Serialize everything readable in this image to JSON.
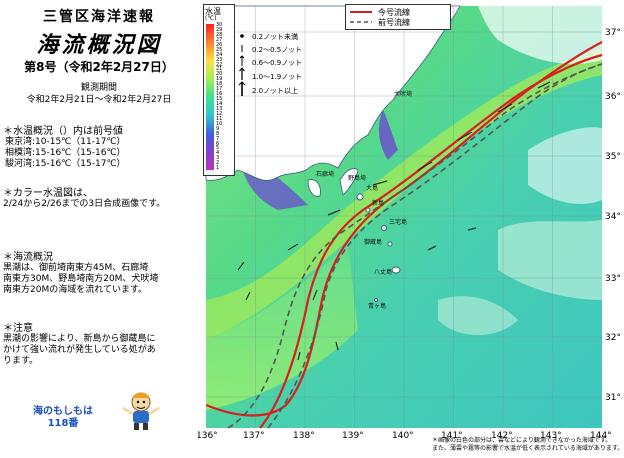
{
  "header": {
    "org": "三管区海洋速報",
    "title": "海流概況図",
    "issue": "第8号（令和2年2月27日）",
    "period_label": "観測期間",
    "period": "令和2年2月21日～令和2年2月27日"
  },
  "sections": {
    "temp": {
      "heading": "＊水温概況（）内は前号値",
      "lines": [
        "東京湾:10-15℃（11-17℃）",
        "相模湾:15-16℃（15-16℃）",
        "駿河湾:15-16℃（15-17℃）"
      ]
    },
    "color": {
      "heading": "＊カラー水温図は、",
      "lines": [
        "2/24から2/26までの3日合成画像です。"
      ]
    },
    "current": {
      "heading": "＊海流概況",
      "lines": [
        "黒潮は、御前埼南東方45M、石廊埼",
        "南東方30M、野島埼南方20M、犬吠埼",
        "南東方20Mの海域を流れています。"
      ]
    },
    "caution": {
      "heading": "＊注意",
      "lines": [
        "黒潮の影響により、新島から御蔵島に",
        "かけて強い流れが発生している処があ",
        "ります。"
      ]
    }
  },
  "mascot": {
    "line1": "海のもしもは",
    "line2": "118番"
  },
  "map": {
    "lon_ticks": [
      "136°",
      "137°",
      "138°",
      "139°",
      "140°",
      "141°",
      "142°",
      "143°",
      "144°"
    ],
    "lat_ticks": [
      "37°",
      "36°",
      "35°",
      "34°",
      "33°",
      "32°",
      "31°"
    ],
    "temp_scale_title": "水温",
    "temp_scale_unit": "(℃)",
    "temp_scale_values": [
      "30",
      "29",
      "28",
      "27",
      "26",
      "25",
      "24",
      "23",
      "22",
      "21",
      "20",
      "19",
      "18",
      "17",
      "16",
      "15",
      "14",
      "13",
      "12",
      "11",
      "10",
      "9",
      "8",
      "7",
      "6",
      "5",
      "4",
      "3",
      "2",
      "1"
    ],
    "legend_current": "今号流線",
    "legend_previous": "前号流線",
    "speed_legend": [
      "0.2ノット未満",
      "0.2～0.5ノット",
      "0.6～0.9ノット",
      "1.0～1.9ノット",
      "2.0ノット以上"
    ],
    "place_labels": {
      "ishiro": "石廊埼",
      "nojima": "野島埼",
      "inubo": "犬吠埼",
      "niijima": "新島",
      "oshima": "大島",
      "miyake": "三宅島",
      "mikura": "御蔵島",
      "hachijo": "八丈島",
      "aogashima": "青ヶ島"
    },
    "footnote1": "＊画像の白色の部分は、雲などにより観測できなかった海域です。",
    "footnote2": "また、薄雲や霧等の影響で水温が低く表示されている海域があります。",
    "colors": {
      "kuroshio_current": "#d62020",
      "kuroshio_previous": "#555555",
      "land": "#ffffff",
      "coast": "#3a5c7a"
    }
  }
}
